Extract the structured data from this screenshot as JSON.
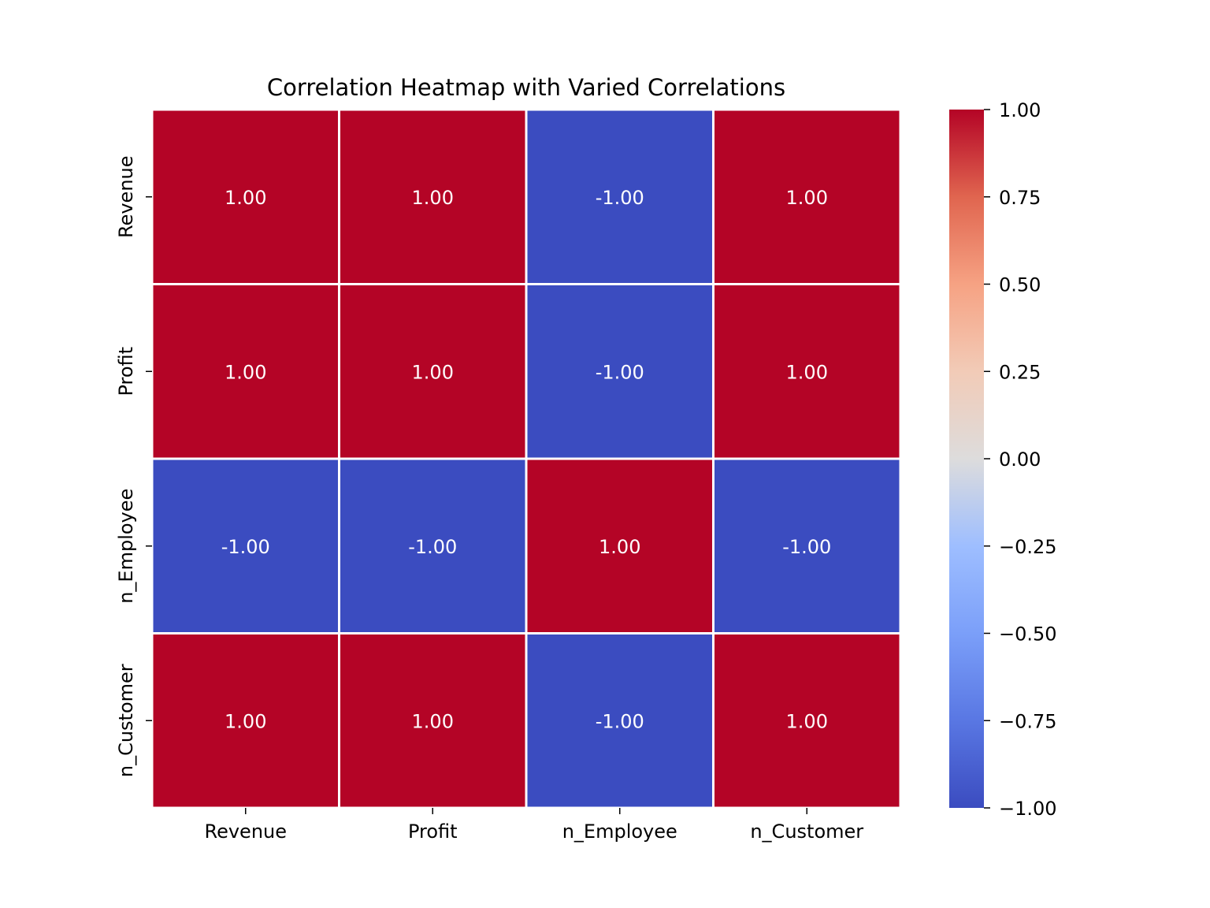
{
  "chart_data": {
    "type": "heatmap",
    "title": "Correlation Heatmap with Varied Correlations",
    "xlabel": "",
    "ylabel": "",
    "x_categories": [
      "Revenue",
      "Profit",
      "n_Employee",
      "n_Customer"
    ],
    "y_categories": [
      "Revenue",
      "Profit",
      "n_Employee",
      "n_Customer"
    ],
    "values": [
      [
        1.0,
        1.0,
        -1.0,
        1.0
      ],
      [
        1.0,
        1.0,
        -1.0,
        1.0
      ],
      [
        -1.0,
        -1.0,
        1.0,
        -1.0
      ],
      [
        1.0,
        1.0,
        -1.0,
        1.0
      ]
    ],
    "cell_labels": [
      [
        "1.00",
        "1.00",
        "-1.00",
        "1.00"
      ],
      [
        "1.00",
        "1.00",
        "-1.00",
        "1.00"
      ],
      [
        "-1.00",
        "-1.00",
        "1.00",
        "-1.00"
      ],
      [
        "1.00",
        "1.00",
        "-1.00",
        "1.00"
      ]
    ],
    "colormap": "coolwarm",
    "colors": {
      "low": "#3b4cc0",
      "high": "#b40426",
      "cell_border": "#ffffff"
    },
    "colorbar": {
      "range": [
        -1.0,
        1.0
      ],
      "ticks": [
        1.0,
        0.75,
        0.5,
        0.25,
        0.0,
        -0.25,
        -0.5,
        -0.75,
        -1.0
      ],
      "tick_labels": [
        "1.00",
        "0.75",
        "0.50",
        "0.25",
        "0.00",
        "−0.25",
        "−0.50",
        "−0.75",
        "−1.00"
      ]
    }
  }
}
